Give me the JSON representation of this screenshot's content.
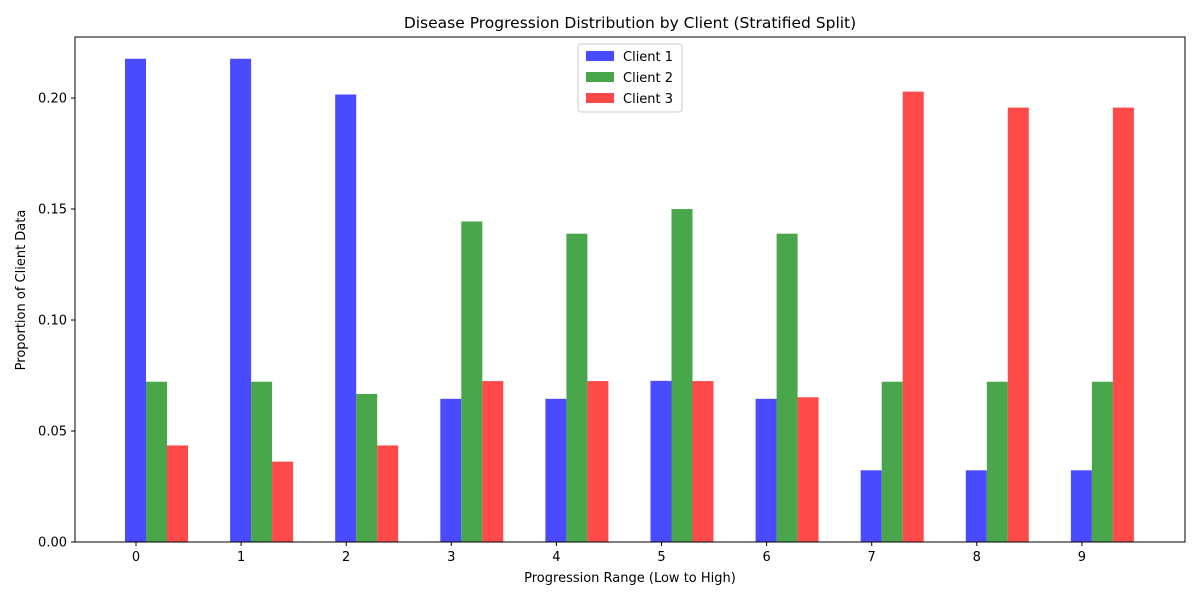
{
  "chart_data": {
    "type": "bar",
    "title": "Disease Progression Distribution by Client (Stratified Split)",
    "xlabel": "Progression Range (Low to High)",
    "ylabel": "Proportion of Client Data",
    "categories": [
      "0",
      "1",
      "2",
      "3",
      "4",
      "5",
      "6",
      "7",
      "8",
      "9"
    ],
    "ylim": [
      0,
      0.2275
    ],
    "yticks": [
      "0.00",
      "0.05",
      "0.10",
      "0.15",
      "0.20"
    ],
    "ytick_values": [
      0,
      0.05,
      0.1,
      0.15,
      0.2
    ],
    "grid": false,
    "legend_position": "top-center",
    "series": [
      {
        "name": "Client 1",
        "color": "#4a4aff",
        "values": [
          0.2177,
          0.2177,
          0.2016,
          0.0645,
          0.0645,
          0.0726,
          0.0645,
          0.0323,
          0.0323,
          0.0323
        ]
      },
      {
        "name": "Client 2",
        "color": "#4aa64a",
        "values": [
          0.0722,
          0.0722,
          0.0667,
          0.1444,
          0.1389,
          0.15,
          0.1389,
          0.0722,
          0.0722,
          0.0722
        ]
      },
      {
        "name": "Client 3",
        "color": "#ff4a4a",
        "values": [
          0.0435,
          0.0362,
          0.0435,
          0.0725,
          0.0725,
          0.0725,
          0.0652,
          0.2029,
          0.1957,
          0.1957
        ]
      }
    ]
  }
}
